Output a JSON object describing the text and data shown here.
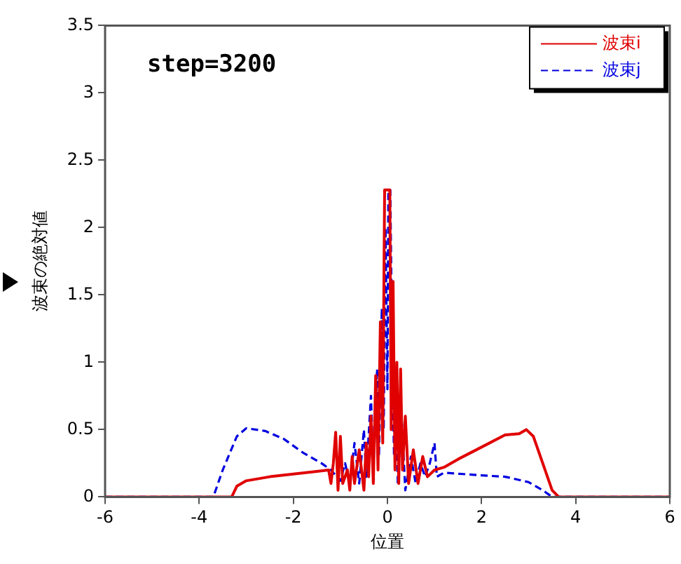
{
  "chart_data": {
    "type": "line",
    "annotations": [
      "step=3200"
    ],
    "xlabel": "位置",
    "ylabel": "波束の絶対値",
    "xlim": [
      -6,
      6
    ],
    "xticks": [
      -6,
      -4,
      -2,
      0,
      2,
      4,
      6
    ],
    "ylim": [
      0,
      3.5
    ],
    "yticks": [
      0,
      0.5,
      1,
      1.5,
      2,
      2.5,
      3,
      3.5
    ],
    "grid": false,
    "legend": "top right",
    "marker": "none",
    "series": [
      {
        "name": "波束i",
        "color": "#e00000",
        "line_style": "solid",
        "x": [
          -6,
          -3.31,
          -3.2,
          -3.0,
          -2.5,
          -2,
          -1.5,
          -1.25,
          -1.2,
          -1.15,
          -1.1,
          -1.05,
          -1.0,
          -0.95,
          -0.85,
          -0.8,
          -0.75,
          -0.7,
          -0.6,
          -0.5,
          -0.45,
          -0.4,
          -0.35,
          -0.3,
          -0.25,
          -0.2,
          -0.15,
          -0.1,
          -0.06,
          0.05,
          0.08,
          0.12,
          0.16,
          0.2,
          0.24,
          0.28,
          0.32,
          0.38,
          0.45,
          0.55,
          0.65,
          0.75,
          0.85,
          1.0,
          1.2,
          1.5,
          2.0,
          2.5,
          2.8,
          2.95,
          3.1,
          3.3,
          3.5,
          3.64,
          6
        ],
        "values": [
          0,
          0,
          0.08,
          0.12,
          0.15,
          0.17,
          0.19,
          0.2,
          0.1,
          0.25,
          0.48,
          0.05,
          0.45,
          0.1,
          0.2,
          0.05,
          0.3,
          0.1,
          0.35,
          0.05,
          0.4,
          0.15,
          0.6,
          0.1,
          0.9,
          0.2,
          1.3,
          0.4,
          2.28,
          2.28,
          0.5,
          1.6,
          0.2,
          1.0,
          0.1,
          0.95,
          0.2,
          0.6,
          0.1,
          0.35,
          0.1,
          0.3,
          0.15,
          0.2,
          0.22,
          0.28,
          0.37,
          0.46,
          0.47,
          0.5,
          0.45,
          0.25,
          0.05,
          0,
          0
        ]
      },
      {
        "name": "波束j",
        "color": "#0000e0",
        "line_style": "dashed",
        "x": [
          -6,
          -3.7,
          -3.5,
          -3.2,
          -3.0,
          -2.6,
          -2.2,
          -1.8,
          -1.4,
          -1.2,
          -1.0,
          -0.9,
          -0.8,
          -0.7,
          -0.6,
          -0.5,
          -0.45,
          -0.35,
          -0.3,
          -0.22,
          -0.18,
          -0.12,
          -0.08,
          -0.04,
          0.0,
          0.02,
          0.06,
          0.1,
          0.14,
          0.18,
          0.22,
          0.3,
          0.38,
          0.5,
          0.6,
          0.7,
          0.8,
          0.9,
          1.0,
          1.05,
          1.2,
          1.6,
          2.0,
          2.5,
          3.0,
          3.3,
          3.5,
          6
        ],
        "values": [
          0,
          0,
          0.2,
          0.45,
          0.51,
          0.49,
          0.43,
          0.33,
          0.25,
          0.2,
          0.12,
          0.25,
          0.1,
          0.4,
          0.1,
          0.5,
          0.15,
          0.75,
          0.2,
          0.95,
          0.3,
          1.4,
          0.5,
          2.0,
          0.8,
          2.28,
          2.28,
          1.1,
          0.3,
          0.9,
          0.1,
          0.6,
          0.05,
          0.3,
          0.1,
          0.25,
          0.15,
          0.25,
          0.4,
          0.15,
          0.18,
          0.17,
          0.16,
          0.15,
          0.11,
          0.05,
          0,
          0
        ]
      }
    ]
  }
}
